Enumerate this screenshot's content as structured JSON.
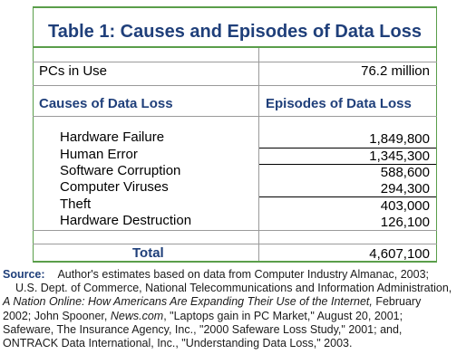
{
  "table": {
    "title": "Table 1: Causes and Episodes of Data Loss",
    "pcs_label": "PCs in Use",
    "pcs_value": "76.2 million",
    "col_left_header": "Causes of Data Loss",
    "col_right_header": "Episodes of Data Loss",
    "rows": [
      {
        "cause": "Hardware Failure",
        "episodes": "1,849,800"
      },
      {
        "cause": "Human Error",
        "episodes": "1,345,300"
      },
      {
        "cause": "Software Corruption",
        "episodes": "588,600"
      },
      {
        "cause": "Computer Viruses",
        "episodes": "294,300"
      },
      {
        "cause": "Theft",
        "episodes": "403,000"
      },
      {
        "cause": "Hardware Destruction",
        "episodes": "126,100"
      }
    ],
    "total_label": "Total",
    "total_value": "4,607,100"
  },
  "source": {
    "label": "Source",
    "line1": "Author's estimates based on data from Computer Industry Almanac, 2003;",
    "line2": "U.S. Dept. of Commerce, National Telecommunications and Information Administration,",
    "line3_italic": "A Nation Online: How Americans Are Expanding Their Use of the Internet,",
    "line3_rest": " February",
    "line4_a": "2002; John Spooner, ",
    "line4_italic": "News.com",
    "line4_b": ", \"Laptops gain in PC Market,\" August 20, 2001;",
    "line5": "Safeware, The Insurance Agency, Inc., \"2000 Safeware Loss Study,\" 2001; and,",
    "line6": "ONTRACK Data International, Inc., \"Understanding Data Loss,\" 2003."
  }
}
